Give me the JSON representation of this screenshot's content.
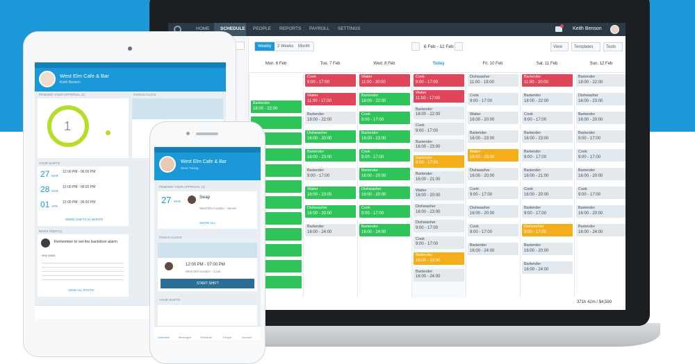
{
  "laptop": {
    "nav": [
      "HOME",
      "SCHEDULE",
      "PEOPLE",
      "REPORTS",
      "PAYROLL",
      "SETTINGS"
    ],
    "user": "Keith Benson",
    "views": [
      "Weekly",
      "2 Weeks",
      "Month"
    ],
    "range": "6 Feb - 12 Feb",
    "tools": [
      "View",
      "Templates",
      "Tools"
    ],
    "footer": "371h 42m / $4,580",
    "days": [
      {
        "label": "Mon. 6 Feb",
        "shifts": [
          {
            "role": "Bartender",
            "time": "18:00 - 22:00",
            "color": "#2ec45a"
          }
        ]
      },
      {
        "label": "Tue. 7 Feb",
        "shifts": [
          {
            "role": "Cook",
            "time": "9:00 - 17:00",
            "color": "#e0455a"
          },
          {
            "role": "Waiter",
            "time": "11:00 - 17:00",
            "color": "#e0455a"
          },
          {
            "role": "Bartender",
            "time": "18:00 - 22:00",
            "color": "#e4e9ee"
          },
          {
            "role": "Dishwasher",
            "time": "16:00 - 20:00",
            "color": "#2ec45a"
          },
          {
            "role": "Bartender",
            "time": "16:00 - 23:00",
            "color": "#2ec45a"
          },
          {
            "role": "Bartender",
            "time": "9:00 - 17:00",
            "color": "#e4e9ee"
          },
          {
            "role": "Waiter",
            "time": "16:00 - 23:00",
            "color": "#2ec45a"
          },
          {
            "role": "Dishwasher",
            "time": "16:00 - 20:00",
            "color": "#2ec45a"
          },
          {
            "role": "Bartender",
            "time": "16:00 - 24:00",
            "color": "#e4e9ee"
          }
        ]
      },
      {
        "label": "Wed. 8 Feb",
        "shifts": [
          {
            "role": "Waiter",
            "time": "11:00 - 20:00",
            "color": "#e0455a"
          },
          {
            "role": "Bartender",
            "time": "18:00 - 22:00",
            "color": "#2ec45a"
          },
          {
            "role": "Cook",
            "time": "9:00 - 17:00",
            "color": "#2ec45a"
          },
          {
            "role": "Bartender",
            "time": "16:00 - 23:00",
            "color": "#2ec45a"
          },
          {
            "role": "Cook",
            "time": "9:00 - 17:00",
            "color": "#2ec45a"
          },
          {
            "role": "Bartender",
            "time": "16:00 - 20:00",
            "color": "#2ec45a"
          },
          {
            "role": "Dishwasher",
            "time": "16:00 - 20:00",
            "color": "#2ec45a"
          },
          {
            "role": "Cook",
            "time": "9:00 - 17:00",
            "color": "#2ec45a"
          },
          {
            "role": "Bartender",
            "time": "16:00 - 24:00",
            "color": "#2ec45a"
          }
        ]
      },
      {
        "label": "Today",
        "shifts": [
          {
            "role": "Cook",
            "time": "9:00 - 17:00",
            "color": "#e0455a"
          },
          {
            "role": "Waiter",
            "time": "11:00 - 17:00",
            "color": "#e0455a"
          },
          {
            "role": "Bartender",
            "time": "18:00 - 22:00",
            "color": "#e4e9ee"
          },
          {
            "role": "Cook",
            "time": "9:00 - 17:00",
            "color": "#e4e9ee"
          },
          {
            "role": "Bartender",
            "time": "16:00 - 23:00",
            "color": "#e4e9ee"
          },
          {
            "role": "Bartender",
            "time": "9:00 - 17:00",
            "color": "#f4ae1c"
          },
          {
            "role": "Bartender",
            "time": "16:00 - 21:00",
            "color": "#e4e9ee"
          },
          {
            "role": "Waiter",
            "time": "16:00 - 20:00",
            "color": "#e4e9ee"
          },
          {
            "role": "Dishwasher",
            "time": "16:00 - 23:00",
            "color": "#e4e9ee"
          },
          {
            "role": "Dishwasher",
            "time": "9:00 - 17:00",
            "color": "#e4e9ee"
          },
          {
            "role": "Cook",
            "time": "9:00 - 17:00",
            "color": "#e4e9ee"
          },
          {
            "role": "Bartender",
            "time": "16:00 - 23:00",
            "color": "#f4ae1c"
          },
          {
            "role": "Bartender",
            "time": "16:00 - 24:00",
            "color": "#e4e9ee"
          }
        ]
      },
      {
        "label": "Fri. 10 Feb",
        "shifts": [
          {
            "role": "Dishwasher",
            "time": "11:00 - 19:00",
            "color": "#e4e9ee"
          },
          {
            "role": "Cook",
            "time": "9:00 - 17:00",
            "color": "#e4e9ee"
          },
          {
            "role": "Waiter",
            "time": "16:00 - 20:00",
            "color": "#e4e9ee"
          },
          {
            "role": "Bartender",
            "time": "16:00 - 23:00",
            "color": "#e4e9ee"
          },
          {
            "role": "Waiter",
            "time": "16:00 - 23:00",
            "color": "#f4ae1c"
          },
          {
            "role": "Dishwasher",
            "time": "16:00 - 20:00",
            "color": "#e4e9ee"
          },
          {
            "role": "Cook",
            "time": "9:00 - 17:00",
            "color": "#e4e9ee"
          },
          {
            "role": "Dishwasher",
            "time": "16:00 - 20:00",
            "color": "#e4e9ee"
          },
          {
            "role": "Cook",
            "time": "9:00 - 17:00",
            "color": "#e4e9ee"
          },
          {
            "role": "Bartender",
            "time": "16:00 - 24:00",
            "color": "#e4e9ee"
          }
        ]
      },
      {
        "label": "Sat. 11 Feb",
        "shifts": [
          {
            "role": "Bartender",
            "time": "11:00 - 20:00",
            "color": "#e0455a"
          },
          {
            "role": "Bartender",
            "time": "18:00 - 22:00",
            "color": "#e4e9ee"
          },
          {
            "role": "Cook",
            "time": "9:00 - 17:00",
            "color": "#e4e9ee"
          },
          {
            "role": "Bartender",
            "time": "16:00 - 23:00",
            "color": "#e4e9ee"
          },
          {
            "role": "Bartender",
            "time": "9:00 - 17:00",
            "color": "#e4e9ee"
          },
          {
            "role": "Bartender",
            "time": "16:00 - 21:00",
            "color": "#e4e9ee"
          },
          {
            "role": "Cook",
            "time": "16:00 - 20:00",
            "color": "#e4e9ee"
          },
          {
            "role": "Bartender",
            "time": "9:00 - 17:00",
            "color": "#e4e9ee"
          },
          {
            "role": "Dishwasher",
            "time": "9:00 - 17:00",
            "color": "#f4ae1c"
          },
          {
            "role": "Bartender",
            "time": "16:00 - 20:00",
            "color": "#e4e9ee"
          },
          {
            "role": "Bartender",
            "time": "16:00 - 24:00",
            "color": "#e4e9ee"
          }
        ]
      },
      {
        "label": "Sun. 12 Feb",
        "shifts": [
          {
            "role": "Bartender",
            "time": "18:00 - 22:00",
            "color": "#e4e9ee"
          },
          {
            "role": "Dishwasher",
            "time": "16:00 - 23:00",
            "color": "#e4e9ee"
          },
          {
            "role": "Bartender",
            "time": "16:00 - 20:00",
            "color": "#e4e9ee"
          },
          {
            "role": "Bartender",
            "time": "9:00 - 17:00",
            "color": "#e4e9ee"
          },
          {
            "role": "Cook",
            "time": "9:00 - 17:00",
            "color": "#e4e9ee"
          },
          {
            "role": "Bartender",
            "time": "16:00 - 20:00",
            "color": "#e4e9ee"
          },
          {
            "role": "Cook",
            "time": "9:00 - 17:00",
            "color": "#e4e9ee"
          },
          {
            "role": "Bartender",
            "time": "16:00 - 20:00",
            "color": "#e4e9ee"
          },
          {
            "role": "Bartender",
            "time": "16:00 - 24:00",
            "color": "#e4e9ee"
          }
        ]
      }
    ]
  },
  "tablet": {
    "title": "West Elm Cafe & Bar",
    "user": "Keith Benson",
    "pending_label": "PENDING YOUR APPROVAL (1)",
    "pending_count": "1",
    "punch_label": "PUNCH CLOCK",
    "shifts_label": "YOUR SHIFTS",
    "shifts": [
      {
        "day": "27",
        "month": "MAR",
        "time": "12:00 PM - 06:00 PM"
      },
      {
        "day": "28",
        "month": "MAR",
        "time": "12:00 PM - 06:00 PM"
      },
      {
        "day": "01",
        "month": "APR",
        "time": "12:00 PM - 06:00 PM"
      }
    ],
    "more_shifts": "MORE SHIFTS IN MONTH",
    "news_label": "NEWS FEED (1)",
    "news_title": "Remember to set the backdoor alarm",
    "news_greeting": "Hey team,",
    "view_posts": "VIEW ALL POSTS"
  },
  "phone": {
    "title": "West Elm Cafe & Bar",
    "subtitle": "Store Tuning",
    "pending_label": "PENDING YOUR APPROVAL (1)",
    "request": {
      "day": "27",
      "month": "MAR",
      "type": "Swap",
      "location": "West Elm location - Server"
    },
    "show_all": "SHOW ALL",
    "punch_label": "PUNCH CLOCK",
    "punch_time": "12:00 PM - 07:00 PM",
    "punch_location": "West Elm location - Cook",
    "start_shift": "START SHIFT",
    "shifts_label": "YOUR SHIFTS",
    "tabs": [
      "Overview",
      "Messages",
      "Schedule",
      "People",
      "Account"
    ]
  }
}
